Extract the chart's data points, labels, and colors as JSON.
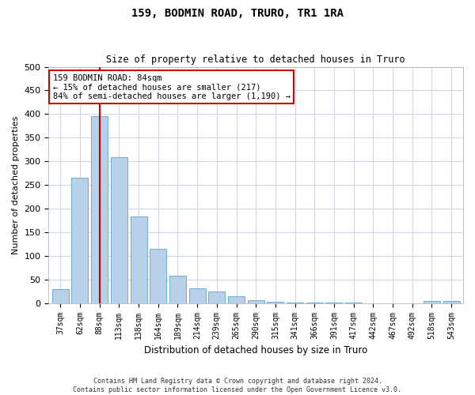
{
  "title": "159, BODMIN ROAD, TRURO, TR1 1RA",
  "subtitle": "Size of property relative to detached houses in Truro",
  "xlabel": "Distribution of detached houses by size in Truro",
  "ylabel": "Number of detached properties",
  "categories": [
    "37sqm",
    "62sqm",
    "88sqm",
    "113sqm",
    "138sqm",
    "164sqm",
    "189sqm",
    "214sqm",
    "239sqm",
    "265sqm",
    "290sqm",
    "315sqm",
    "341sqm",
    "366sqm",
    "391sqm",
    "417sqm",
    "442sqm",
    "467sqm",
    "492sqm",
    "518sqm",
    "543sqm"
  ],
  "values": [
    30,
    265,
    395,
    308,
    183,
    115,
    58,
    32,
    25,
    14,
    6,
    2,
    1,
    1,
    1,
    1,
    0,
    0,
    0,
    4,
    4
  ],
  "bar_color": "#b8d0e8",
  "bar_edge_color": "#6aaed6",
  "vline_color": "#cc0000",
  "vline_pos": 2.0,
  "annotation_text": "159 BODMIN ROAD: 84sqm\n← 15% of detached houses are smaller (217)\n84% of semi-detached houses are larger (1,190) →",
  "annotation_box_color": "#ffffff",
  "annotation_box_edge_color": "#cc0000",
  "ylim": [
    0,
    500
  ],
  "yticks": [
    0,
    50,
    100,
    150,
    200,
    250,
    300,
    350,
    400,
    450,
    500
  ],
  "footer": "Contains HM Land Registry data © Crown copyright and database right 2024.\nContains public sector information licensed under the Open Government Licence v3.0.",
  "bg_color": "#ffffff",
  "plot_bg_color": "#ffffff",
  "grid_color": "#d0d8e8"
}
